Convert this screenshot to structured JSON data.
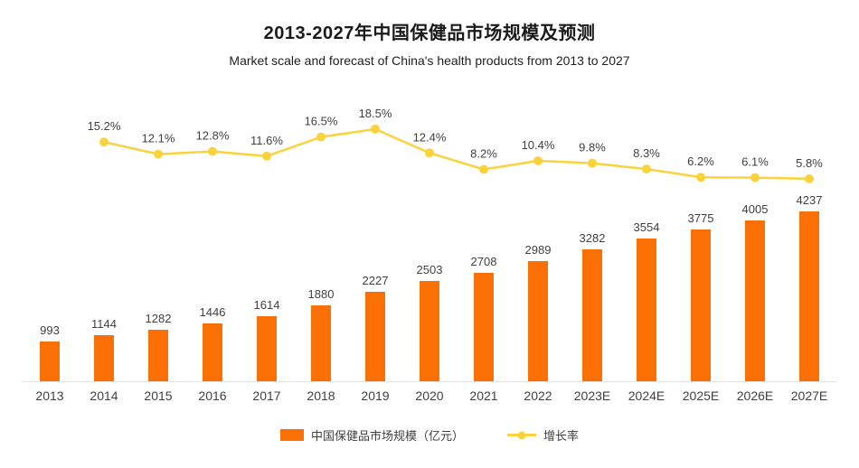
{
  "chart_data": {
    "type": "combo",
    "title": "2013-2027年中国保健品市场规模及预测",
    "subtitle": "Market scale and forecast of China's health products from 2013 to 2027",
    "categories": [
      "2013",
      "2014",
      "2015",
      "2016",
      "2017",
      "2018",
      "2019",
      "2020",
      "2021",
      "2022",
      "2023E",
      "2024E",
      "2025E",
      "2026E",
      "2027E"
    ],
    "series": [
      {
        "name": "中国保健品市场规模（亿元）",
        "type": "bar",
        "color": "#fb7005",
        "values": [
          993,
          1144,
          1282,
          1446,
          1614,
          1880,
          2227,
          2503,
          2708,
          2989,
          3282,
          3554,
          3775,
          4005,
          4237
        ]
      },
      {
        "name": "增长率",
        "type": "line",
        "color": "#fad33c",
        "unit": "%",
        "x_start_index": 1,
        "values": [
          15.2,
          12.1,
          12.8,
          11.6,
          16.5,
          18.5,
          12.4,
          8.2,
          10.4,
          9.8,
          8.3,
          6.2,
          6.1,
          5.8
        ]
      }
    ],
    "legend": [
      "中国保健品市场规模（亿元）",
      "增长率"
    ],
    "ylim_bar": [
      0,
      4500
    ],
    "ylim_line": [
      0,
      20
    ],
    "grid": false,
    "legend_position": "bottom",
    "label_color": "#404040"
  }
}
